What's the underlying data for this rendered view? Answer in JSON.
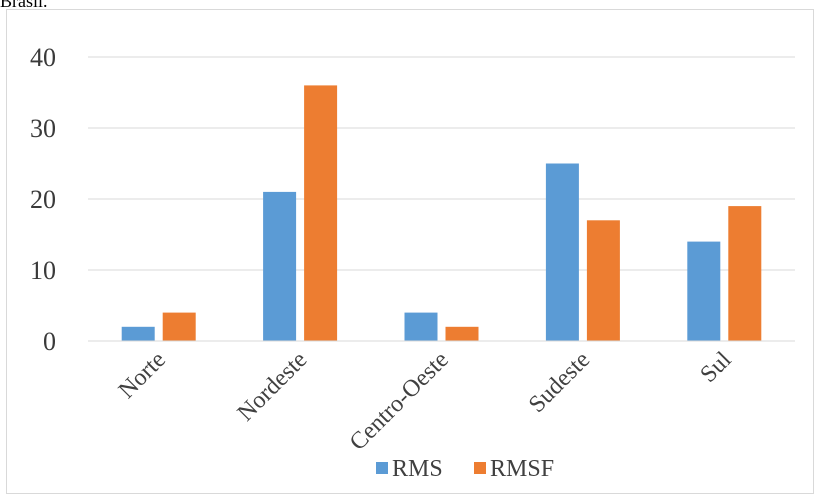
{
  "caption_fragment": "Brasil.",
  "chart_data": {
    "type": "bar",
    "categories": [
      "Norte",
      "Nordeste",
      "Centro-Oeste",
      "Sudeste",
      "Sul"
    ],
    "series": [
      {
        "name": "RMS",
        "values": [
          2,
          21,
          4,
          25,
          14
        ],
        "color": "#5b9bd5"
      },
      {
        "name": "RMSF",
        "values": [
          4,
          36,
          2,
          17,
          19
        ],
        "color": "#ed7d31"
      }
    ],
    "title": "",
    "xlabel": "",
    "ylabel": "",
    "ylim": [
      0,
      40
    ],
    "yticks": [
      0,
      10,
      20,
      30,
      40
    ],
    "grid": true,
    "legend_position": "bottom",
    "gridline_color": "#d9d9d9"
  }
}
